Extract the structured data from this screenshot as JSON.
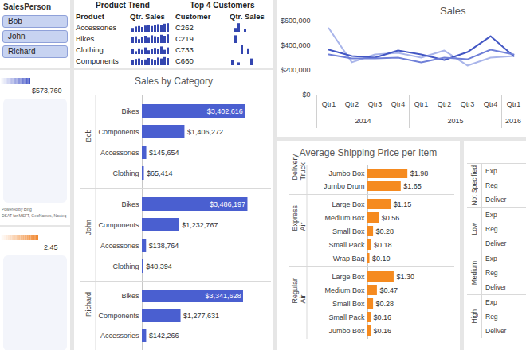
{
  "slicer": {
    "title": "SalesPerson",
    "items": [
      "Bob",
      "John",
      "Richard"
    ]
  },
  "maps": [
    {
      "legend": {
        "value": 573760,
        "label": "$573,760"
      },
      "colors": [
        "#ffffff",
        "#3f51c6"
      ],
      "credits": [
        "Powered by Bing",
        "DSAT for MSFT, GeoNames, Navteq"
      ]
    },
    {
      "legend": {
        "value": 2.45,
        "label": "2.45"
      },
      "colors": [
        "#ffffff",
        "#f0842a"
      ]
    }
  ],
  "tables": [
    {
      "title": "Product Trend",
      "columns": [
        "Product",
        "Qtr. Sales"
      ],
      "color": "#3346b0",
      "ylim": [
        0,
        100
      ],
      "rows": [
        {
          "label": "Accessories",
          "values": [
            40,
            55,
            60,
            50,
            65,
            70,
            60,
            75,
            80,
            70,
            85,
            90
          ]
        },
        {
          "label": "Bikes",
          "values": [
            60,
            70,
            40,
            65,
            75,
            55,
            80,
            70,
            60,
            85,
            75,
            90
          ]
        },
        {
          "label": "Clothing",
          "values": [
            50,
            30,
            60,
            45,
            70,
            40,
            55,
            65,
            50,
            80,
            45,
            70
          ]
        },
        {
          "label": "Components",
          "values": [
            55,
            65,
            70,
            50,
            60,
            75,
            65,
            55,
            80,
            70,
            85,
            75
          ]
        }
      ]
    },
    {
      "title": "Top 4 Customers",
      "columns": [
        "Customer",
        "Qtr. Sales"
      ],
      "color": "#3346b0",
      "ylim": [
        0,
        100
      ],
      "rows": [
        {
          "label": "C262",
          "values": [
            0,
            40,
            90,
            0,
            30,
            0,
            0,
            0,
            0,
            0,
            0,
            0
          ]
        },
        {
          "label": "C219",
          "values": [
            0,
            80,
            0,
            0,
            0,
            0,
            0,
            0,
            0,
            0,
            0,
            0
          ]
        },
        {
          "label": "C733",
          "values": [
            0,
            0,
            0,
            95,
            0,
            60,
            0,
            0,
            0,
            0,
            0,
            0
          ]
        },
        {
          "label": "C660",
          "values": [
            50,
            0,
            30,
            0,
            0,
            0,
            70,
            0,
            0,
            0,
            0,
            0
          ]
        }
      ]
    }
  ],
  "chart_data": [
    {
      "type": "line",
      "title": "Sales",
      "category_groups": [
        {
          "label": "2014",
          "categories": [
            "Qtr1",
            "Qtr2",
            "Qtr3",
            "Qtr4"
          ]
        },
        {
          "label": "2015",
          "categories": [
            "Qtr1",
            "Qtr2",
            "Qtr3",
            "Qtr4"
          ]
        },
        {
          "label": "2016",
          "categories": [
            "Qtr1"
          ]
        }
      ],
      "ylim": [
        0,
        600000
      ],
      "yticks": [
        {
          "value": 0,
          "label": "$0"
        },
        {
          "value": 200000,
          "label": "$200,000"
        },
        {
          "value": 400000,
          "label": "$400,000"
        },
        {
          "value": 600000,
          "label": "$600,000"
        }
      ],
      "grid": false,
      "series": [
        {
          "color": "#a9b5ea",
          "values": [
            542000,
            265000,
            329000,
            342000,
            303000,
            361000,
            239000,
            303000,
            316000
          ]
        },
        {
          "color": "#4357c4",
          "values": [
            368000,
            316000,
            303000,
            361000,
            329000,
            284000,
            348000,
            477000,
            316000
          ]
        },
        {
          "color": "#7080d8",
          "values": [
            329000,
            297000,
            297000,
            303000,
            265000,
            303000,
            290000,
            368000,
            329000
          ]
        }
      ]
    },
    {
      "type": "bar",
      "orientation": "horizontal",
      "title": "Sales by Category",
      "xlim": [
        0,
        4000000
      ],
      "tick_labels": "y",
      "data_labels": true,
      "color": "#4a5fd0",
      "groups": [
        {
          "name": "Bob",
          "categories": [
            "Bikes",
            "Components",
            "Accessories",
            "Clothing"
          ],
          "values": [
            3402616,
            1406272,
            145654,
            65414
          ],
          "value_labels": [
            "$3,402,616",
            "$1,406,272",
            "$145,654",
            "$65,414"
          ]
        },
        {
          "name": "John",
          "categories": [
            "Bikes",
            "Components",
            "Accessories",
            "Clothing"
          ],
          "values": [
            3486197,
            1232767,
            138764,
            48394
          ],
          "value_labels": [
            "$3,486,197",
            "$1,232,767",
            "$138,764",
            "$48,394"
          ]
        },
        {
          "name": "Richard",
          "categories": [
            "Bikes",
            "Components",
            "Accessories"
          ],
          "values": [
            3341628,
            1277631,
            142266
          ],
          "value_labels": [
            "$3,341,628",
            "$1,277,631",
            "$142,266"
          ]
        }
      ]
    },
    {
      "type": "bar",
      "orientation": "horizontal",
      "title": "Average Shipping Price per Item",
      "xlim": [
        0,
        3
      ],
      "tick_labels": "y",
      "data_labels": true,
      "color": "#f58a1f",
      "groups": [
        {
          "name": "Delivery Truck",
          "categories": [
            "Jumbo Box",
            "Jumbo Drum"
          ],
          "values": [
            1.98,
            1.65
          ],
          "value_labels": [
            "$1.98",
            "$1.65"
          ]
        },
        {
          "name": "Express Air",
          "categories": [
            "Large Box",
            "Medium Box",
            "Small Box",
            "Small Pack",
            "Wrap Bag"
          ],
          "values": [
            1.15,
            0.56,
            0.28,
            0.18,
            0.1
          ],
          "value_labels": [
            "$1.15",
            "$0.56",
            "$0.28",
            "$0.18",
            "$0.10"
          ]
        },
        {
          "name": "Regular Air",
          "categories": [
            "Large Box",
            "Medium Box",
            "Small Box",
            "Small Pack",
            "Jumbo Box"
          ],
          "values": [
            1.3,
            0.47,
            0.28,
            0.16,
            0.16
          ],
          "value_labels": [
            "$1.30",
            "$0.47",
            "$0.28",
            "$0.16",
            "$0.16"
          ]
        }
      ]
    }
  ],
  "side_panel": {
    "groups": [
      {
        "name": "Not Specified",
        "rows": [
          "Exp",
          "Reg",
          "Deliver"
        ]
      },
      {
        "name": "Low",
        "rows": [
          "Exp",
          "Reg",
          "Deliver"
        ]
      },
      {
        "name": "Medium",
        "rows": [
          "Exp",
          "Reg",
          "Deliver"
        ]
      },
      {
        "name": "High",
        "rows": [
          "Exp",
          "Reg",
          "Deliver"
        ]
      }
    ]
  }
}
